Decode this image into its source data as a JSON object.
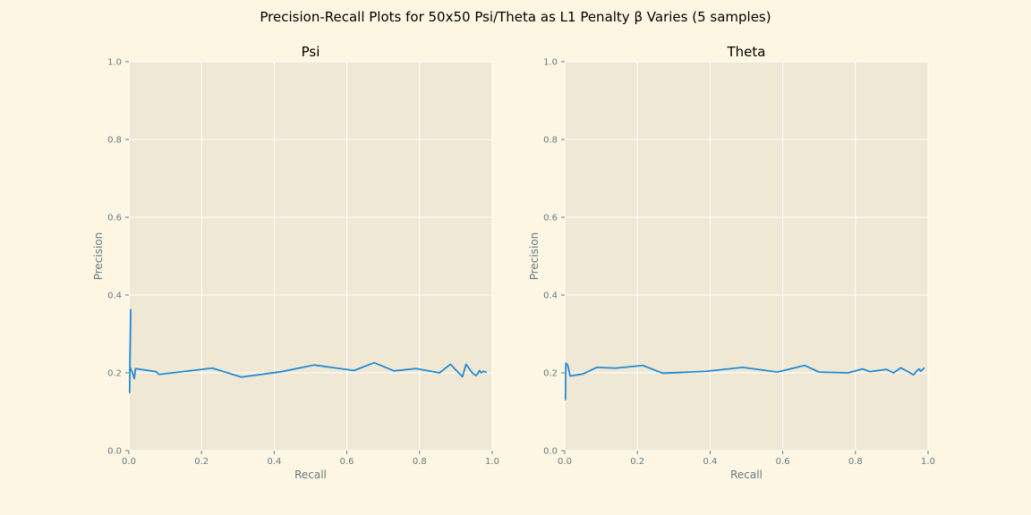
{
  "figure": {
    "suptitle": "Precision-Recall Plots for 50x50 Psi/Theta as L1 Penalty β Varies (5 samples)"
  },
  "colors": {
    "figure_bg": "#fdf6e3",
    "axes_bg": "#eee8d5",
    "grid": "#ffffff",
    "line": "#268bd2",
    "text": "#657b83",
    "title": "#000000"
  },
  "chart_data": [
    {
      "type": "line",
      "title": "Psi",
      "xlabel": "Recall",
      "ylabel": "Precision",
      "xlim": [
        0,
        1
      ],
      "ylim": [
        0,
        1
      ],
      "x_ticks": [
        "0.0",
        "0.2",
        "0.4",
        "0.6",
        "0.8",
        "1.0"
      ],
      "y_ticks": [
        "0.0",
        "0.2",
        "0.4",
        "0.6",
        "0.8",
        "1.0"
      ],
      "grid": true,
      "series": [
        {
          "color": "#268bd2",
          "x": [
            0.002,
            0.003,
            0.005,
            0.003,
            0.01,
            0.015,
            0.018,
            0.075,
            0.083,
            0.23,
            0.31,
            0.42,
            0.51,
            0.62,
            0.675,
            0.73,
            0.79,
            0.855,
            0.885,
            0.918,
            0.928,
            0.945,
            0.955,
            0.96,
            0.965,
            0.97,
            0.975,
            0.985
          ],
          "y": [
            0.148,
            0.25,
            0.362,
            0.215,
            0.2,
            0.185,
            0.211,
            0.203,
            0.196,
            0.212,
            0.189,
            0.203,
            0.22,
            0.206,
            0.226,
            0.205,
            0.211,
            0.2,
            0.222,
            0.19,
            0.222,
            0.2,
            0.193,
            0.198,
            0.206,
            0.2,
            0.204,
            0.201
          ]
        }
      ]
    },
    {
      "type": "line",
      "title": "Theta",
      "xlabel": "Recall",
      "ylabel": "Precision",
      "xlim": [
        0,
        1
      ],
      "ylim": [
        0,
        1
      ],
      "x_ticks": [
        "0.0",
        "0.2",
        "0.4",
        "0.6",
        "0.8",
        "1.0"
      ],
      "y_ticks": [
        "0.0",
        "0.2",
        "0.4",
        "0.6",
        "0.8",
        "1.0"
      ],
      "grid": true,
      "series": [
        {
          "color": "#268bd2",
          "x": [
            0.002,
            0.003,
            0.008,
            0.015,
            0.05,
            0.088,
            0.14,
            0.215,
            0.27,
            0.39,
            0.49,
            0.585,
            0.66,
            0.7,
            0.78,
            0.82,
            0.84,
            0.885,
            0.905,
            0.925,
            0.96,
            0.97,
            0.975,
            0.98,
            0.985,
            0.99
          ],
          "y": [
            0.13,
            0.225,
            0.22,
            0.192,
            0.197,
            0.214,
            0.212,
            0.219,
            0.199,
            0.204,
            0.214,
            0.202,
            0.219,
            0.202,
            0.2,
            0.21,
            0.203,
            0.209,
            0.2,
            0.213,
            0.195,
            0.206,
            0.21,
            0.204,
            0.209,
            0.213
          ]
        }
      ]
    }
  ]
}
